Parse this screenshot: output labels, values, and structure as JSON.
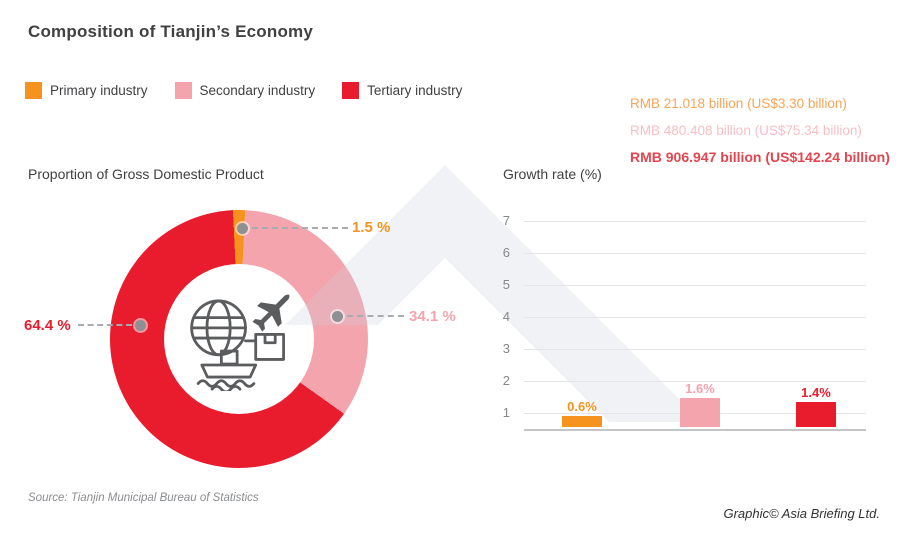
{
  "header": {
    "title": "Composition of Tianjin’s Economy"
  },
  "legend": {
    "items": [
      {
        "label": "Primary industry",
        "color": "#F6921E"
      },
      {
        "label": "Secondary industry",
        "color": "#F4A4AD"
      },
      {
        "label": "Tertiary industry",
        "color": "#E81C2C"
      }
    ]
  },
  "value_callouts": {
    "items": [
      {
        "text": "RMB 21.018 billion (US$3.30 billion)",
        "color": "#F8A456",
        "bold": false
      },
      {
        "text": "RMB 480.408 billion (US$75.34 billion)",
        "color": "#F8BEC4",
        "bold": false
      },
      {
        "text": "RMB 906.947 billion (US$142.24 billion)",
        "color": "#E6454F",
        "bold": true
      }
    ]
  },
  "chart_data": [
    {
      "type": "pie",
      "variant": "donut",
      "title": "Proportion of Gross Domestic Product",
      "labels": [
        "Primary industry",
        "Secondary industry",
        "Tertiary industry"
      ],
      "values": [
        1.5,
        34.1,
        64.4
      ],
      "display_labels": [
        "1.5 %",
        "34.1 %",
        "64.4 %"
      ],
      "colors": [
        "#F6921E",
        "#F4A4AD",
        "#E81C2C"
      ],
      "start_angle_deg": -2.7,
      "unit": "%",
      "center_icon": "globe-plane-package-ship trade icon"
    },
    {
      "type": "bar",
      "title": "Growth rate (%)",
      "categories": [
        "Primary industry",
        "Secondary industry",
        "Tertiary industry"
      ],
      "values": [
        0.6,
        1.6,
        1.4
      ],
      "display_labels": [
        "0.6%",
        "1.6%",
        "1.4%"
      ],
      "colors": [
        "#F6921E",
        "#F4A4AD",
        "#E81C2C"
      ],
      "yticks": [
        1,
        2,
        3,
        4,
        5,
        6,
        7
      ],
      "ylim": [
        0,
        7.5
      ],
      "grid": true,
      "legend_position": "none"
    }
  ],
  "footer": {
    "source": "Source: Tianjin Municipal Bureau of Statistics",
    "credit": "Graphic© Asia Briefing Ltd."
  }
}
